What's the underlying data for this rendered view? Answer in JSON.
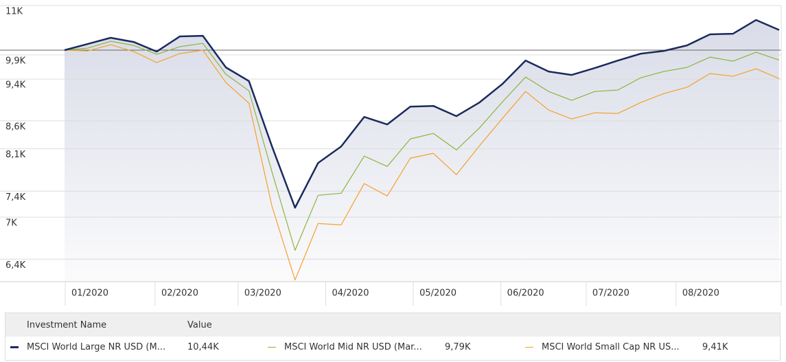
{
  "chart_data": {
    "type": "line",
    "log_scale": true,
    "grid": true,
    "categories": [
      null,
      null,
      null,
      null,
      null,
      null,
      null,
      null,
      null,
      null,
      null,
      null,
      null,
      null,
      null,
      null,
      null,
      null,
      null,
      null,
      null,
      null,
      null,
      null,
      null,
      null,
      null,
      null,
      null,
      null,
      null,
      null
    ],
    "ylim": [
      6100,
      11000
    ],
    "yticks": [
      {
        "value": 11000,
        "label": "11K"
      },
      {
        "value": 9900,
        "label": "9,9K"
      },
      {
        "value": 9400,
        "label": "9,4K"
      },
      {
        "value": 8600,
        "label": "8,6K"
      },
      {
        "value": 8100,
        "label": "8,1K"
      },
      {
        "value": 7400,
        "label": "7,4K"
      },
      {
        "value": 7000,
        "label": "7K"
      },
      {
        "value": 6400,
        "label": "6,4K"
      }
    ],
    "xticks": [
      {
        "value": 0,
        "label": "01/2020"
      },
      {
        "value": 3.9,
        "label": "02/2020"
      },
      {
        "value": 7.5,
        "label": "03/2020"
      },
      {
        "value": 11.3,
        "label": "04/2020"
      },
      {
        "value": 15.1,
        "label": "05/2020"
      },
      {
        "value": 18.9,
        "label": "06/2020"
      },
      {
        "value": 22.6,
        "label": "07/2020"
      },
      {
        "value": 26.5,
        "label": "08/2020"
      }
    ],
    "baseline": 10000,
    "legend_headers": [
      "Investment Name",
      "Value"
    ],
    "series": [
      {
        "name": "MSCI World Large NR USD (M...",
        "color": "#1b2a5c",
        "value_label": "10,44K",
        "values": [
          10000,
          10132,
          10267,
          10176,
          9969,
          10297,
          10311,
          9638,
          9360,
          8141,
          7143,
          7859,
          8141,
          8671,
          8533,
          8864,
          8877,
          8685,
          8943,
          9305,
          9780,
          9554,
          9484,
          9624,
          9780,
          9925,
          9983,
          10101,
          10342,
          10357,
          10665,
          10440
        ]
      },
      {
        "name": "MSCI World Mid NR USD (Mar...",
        "color": "#8db33a",
        "value_label": "9,79K",
        "values": [
          10000,
          10043,
          10192,
          10101,
          9911,
          10073,
          10147,
          9498,
          9169,
          7710,
          6522,
          7335,
          7367,
          7975,
          7801,
          8273,
          8371,
          8081,
          8470,
          8955,
          9442,
          9155,
          8983,
          9155,
          9183,
          9428,
          9554,
          9638,
          9852,
          9767,
          9955,
          9790
        ]
      },
      {
        "name": "MSCI World Small Cap NR US...",
        "color": "#f5a02a",
        "value_label": "9,41K",
        "values": [
          10000,
          9983,
          10117,
          9969,
          9738,
          9925,
          10000,
          9331,
          8930,
          7164,
          6122,
          6906,
          6886,
          7521,
          7324,
          7940,
          8022,
          7665,
          8152,
          8646,
          9155,
          8800,
          8633,
          8748,
          8735,
          8943,
          9115,
          9237,
          9512,
          9457,
          9610,
          9410
        ]
      }
    ]
  }
}
